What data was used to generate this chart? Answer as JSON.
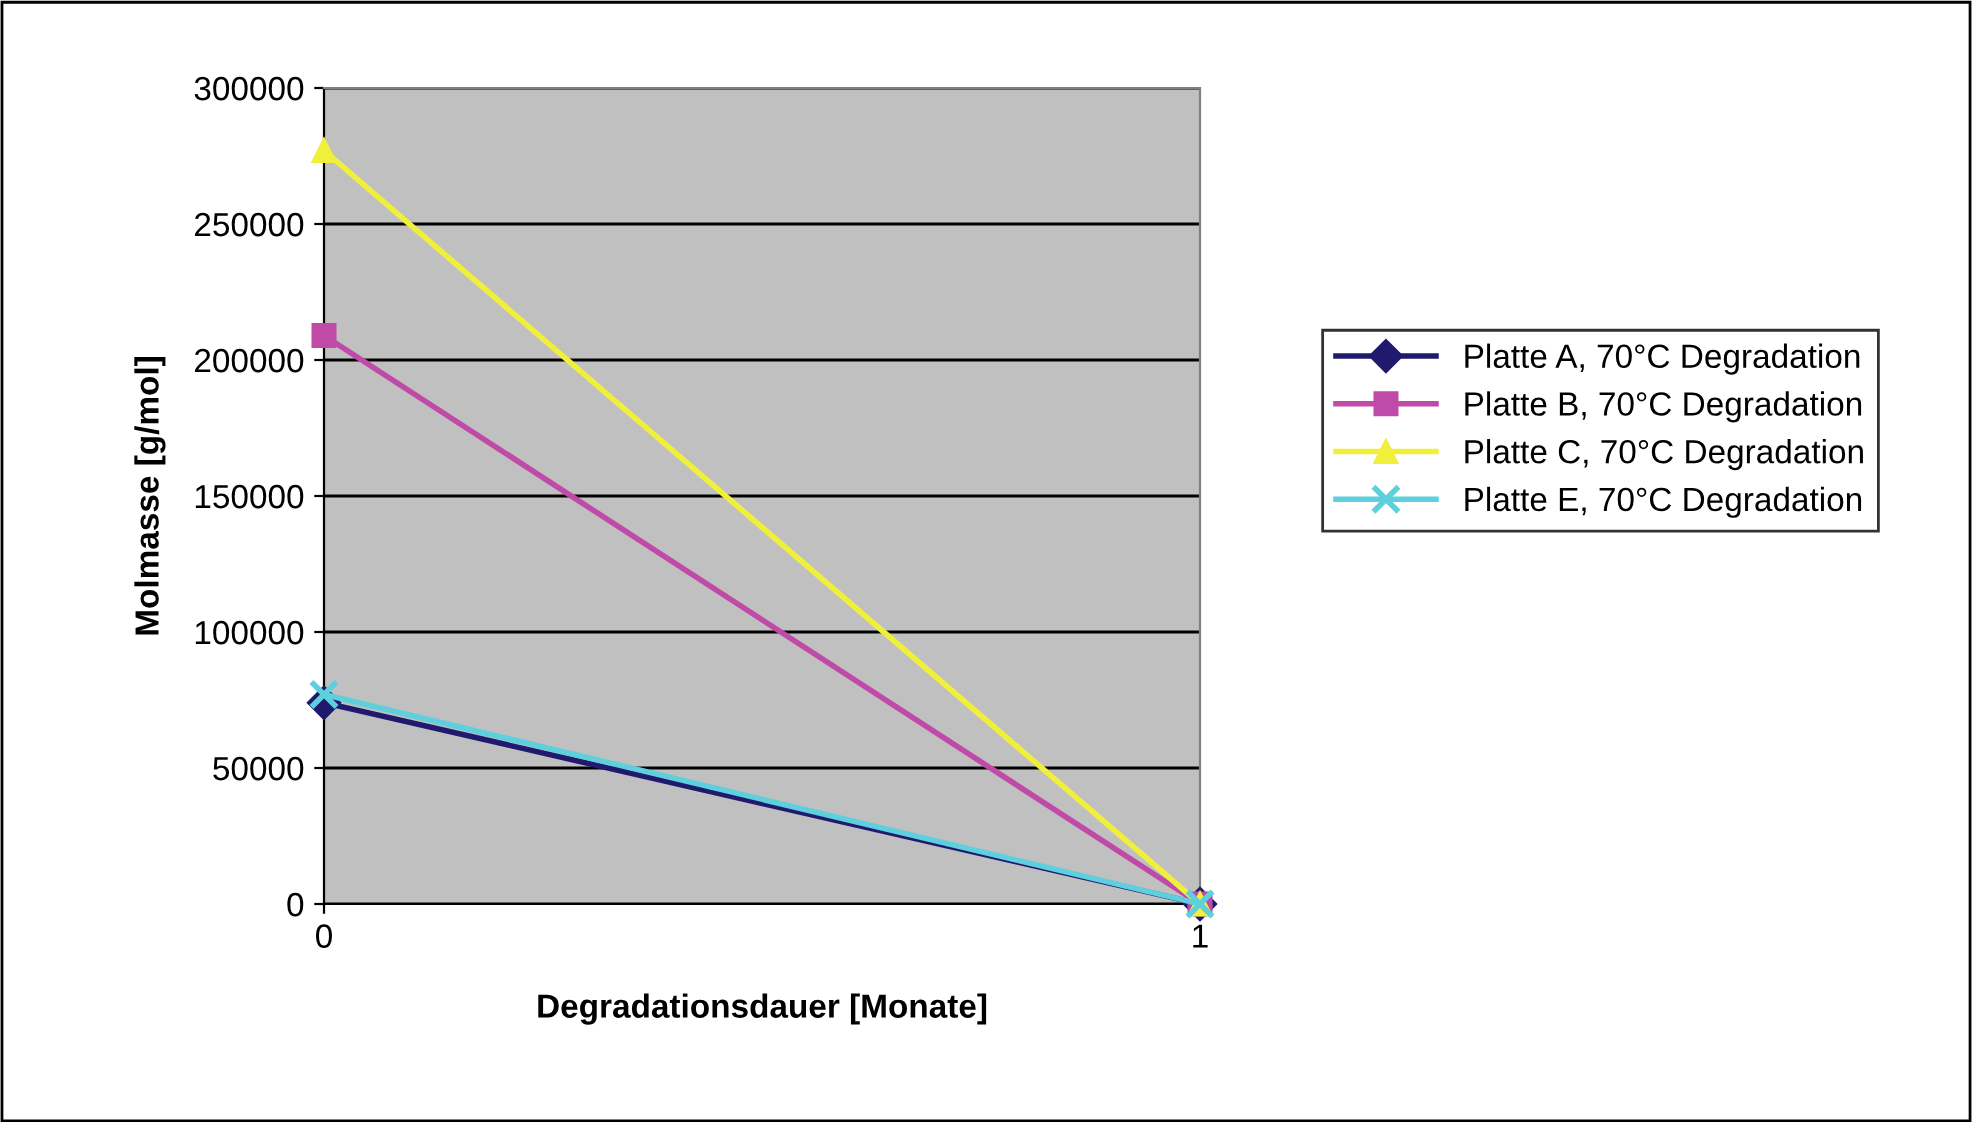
{
  "chart_data": {
    "type": "line",
    "xlabel": "Degradationsdauer [Monate]",
    "ylabel": "Molmasse [g/mol]",
    "x": [
      0,
      1
    ],
    "xlim": [
      0,
      1
    ],
    "xticks": [
      0,
      1
    ],
    "series": [
      {
        "name": "Platte A, 70°C Degradation",
        "color": "#1f1a6e",
        "marker": "diamond",
        "values": [
          74000,
          0
        ]
      },
      {
        "name": "Platte B, 70°C Degradation",
        "color": "#c04aa8",
        "marker": "square",
        "values": [
          209000,
          0
        ]
      },
      {
        "name": "Platte C, 70°C Degradation",
        "color": "#f0f03c",
        "marker": "triangle",
        "values": [
          277000,
          0
        ]
      },
      {
        "name": "Platte E, 70°C Degradation",
        "color": "#5ecfdc",
        "marker": "cross",
        "values": [
          77000,
          0
        ]
      }
    ],
    "ylim": [
      0,
      300000
    ],
    "yticks": [
      0,
      50000,
      100000,
      150000,
      200000,
      250000,
      300000
    ],
    "grid": "y",
    "legend": "right"
  }
}
